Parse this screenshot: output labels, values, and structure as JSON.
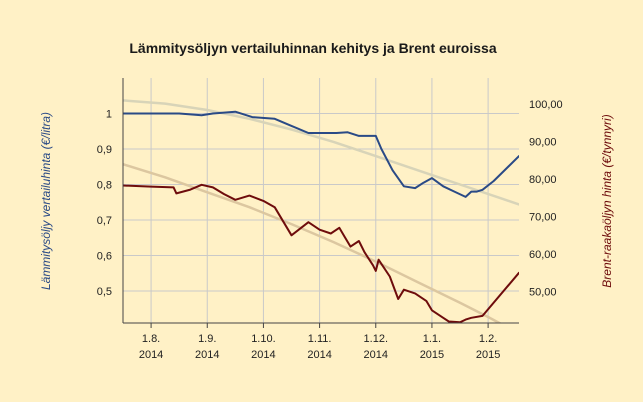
{
  "chart_data": {
    "type": "line",
    "title": "Lämmitysöljyn vertailuhinnan kehitys ja Brent euroissa",
    "ylabel_left": "Lämmitysöljy vertailuhinta (€/litra)",
    "ylabel_right": "Brent-raakaöljyn hinta (€/tynnyri)",
    "x_ticks": [
      {
        "month": 7,
        "line1": "1.8.",
        "line2": "2014"
      },
      {
        "month": 8,
        "line1": "1.9.",
        "line2": "2014"
      },
      {
        "month": 9,
        "line1": "1.10.",
        "line2": "2014"
      },
      {
        "month": 10,
        "line1": "1.11.",
        "line2": "2014"
      },
      {
        "month": 11,
        "line1": "1.12.",
        "line2": "2014"
      },
      {
        "month": 12,
        "line1": "1.1.",
        "line2": "2015"
      },
      {
        "month": 13,
        "line1": "1.2.",
        "line2": "2015"
      }
    ],
    "xlim": [
      6.5,
      13.55
    ],
    "y_left": {
      "lim": [
        0.41,
        1.1
      ],
      "ticks": [
        0.5,
        0.6,
        0.7,
        0.8,
        0.9,
        1
      ],
      "tick_labels": [
        "0,5",
        "0,6",
        "0,7",
        "0,8",
        "0,9",
        "1"
      ]
    },
    "y_right": {
      "lim": [
        41.6,
        107
      ],
      "ticks": [
        50,
        60,
        70,
        80,
        90,
        100
      ],
      "tick_labels": [
        "50,00",
        "60,00",
        "70,00",
        "80,00",
        "90,00",
        "100,00"
      ]
    },
    "grid": true,
    "series": [
      {
        "axis": "left",
        "color": "#2a4a86",
        "x": [
          6.5,
          7.0,
          7.5,
          7.9,
          8.1,
          8.5,
          8.8,
          9.2,
          9.5,
          9.8,
          10.0,
          10.3,
          10.5,
          10.7,
          10.85,
          11.0,
          11.1,
          11.3,
          11.5,
          11.7,
          11.85,
          12.0,
          12.2,
          12.4,
          12.6,
          12.7,
          12.8,
          12.9,
          13.1,
          13.55
        ],
        "y": [
          1.0,
          1.0,
          1.0,
          0.995,
          1.0,
          1.005,
          0.99,
          0.985,
          0.965,
          0.945,
          0.945,
          0.945,
          0.947,
          0.937,
          0.937,
          0.937,
          0.9,
          0.84,
          0.795,
          0.79,
          0.805,
          0.818,
          0.795,
          0.78,
          0.765,
          0.78,
          0.78,
          0.785,
          0.81,
          0.88
        ]
      },
      {
        "axis": "right",
        "color": "#6e0c0c",
        "x": [
          6.5,
          7.0,
          7.4,
          7.45,
          7.7,
          7.9,
          8.1,
          8.3,
          8.5,
          8.75,
          9.0,
          9.2,
          9.5,
          9.8,
          10.0,
          10.2,
          10.35,
          10.45,
          10.55,
          10.7,
          10.8,
          10.95,
          11.0,
          11.05,
          11.25,
          11.4,
          11.5,
          11.7,
          11.9,
          12.0,
          12.2,
          12.3,
          12.5,
          12.6,
          12.7,
          12.9,
          13.55
        ],
        "y": [
          78.3,
          78.0,
          77.8,
          76.2,
          77.2,
          78.5,
          77.8,
          76.0,
          74.5,
          75.6,
          74.2,
          72.5,
          65.0,
          68.5,
          66.5,
          65.5,
          67.0,
          64.5,
          62.0,
          63.5,
          60.5,
          57.0,
          55.5,
          58.5,
          54.0,
          48.0,
          50.5,
          49.5,
          47.5,
          45.0,
          43.0,
          42.0,
          41.8,
          42.5,
          43.0,
          43.5,
          55.0
        ]
      },
      {
        "axis": "left",
        "color": "#d8d4b8",
        "role": "trend",
        "x": [
          6.5,
          7.25,
          8.0,
          8.75,
          9.5,
          10.25,
          11.0,
          11.75,
          12.5,
          13.25,
          13.55
        ],
        "y": [
          1.037,
          1.028,
          1.01,
          0.985,
          0.955,
          0.92,
          0.88,
          0.84,
          0.8,
          0.76,
          0.744
        ]
      },
      {
        "axis": "right",
        "color": "#dcc7a0",
        "role": "trend",
        "x": [
          6.5,
          7.25,
          8.0,
          8.75,
          9.5,
          10.25,
          11.0,
          11.75,
          12.5,
          13.0,
          13.4
        ],
        "y": [
          84.0,
          80.5,
          76.5,
          72.5,
          68.0,
          63.2,
          58.0,
          52.5,
          47.0,
          43.2,
          40.0
        ]
      }
    ]
  }
}
